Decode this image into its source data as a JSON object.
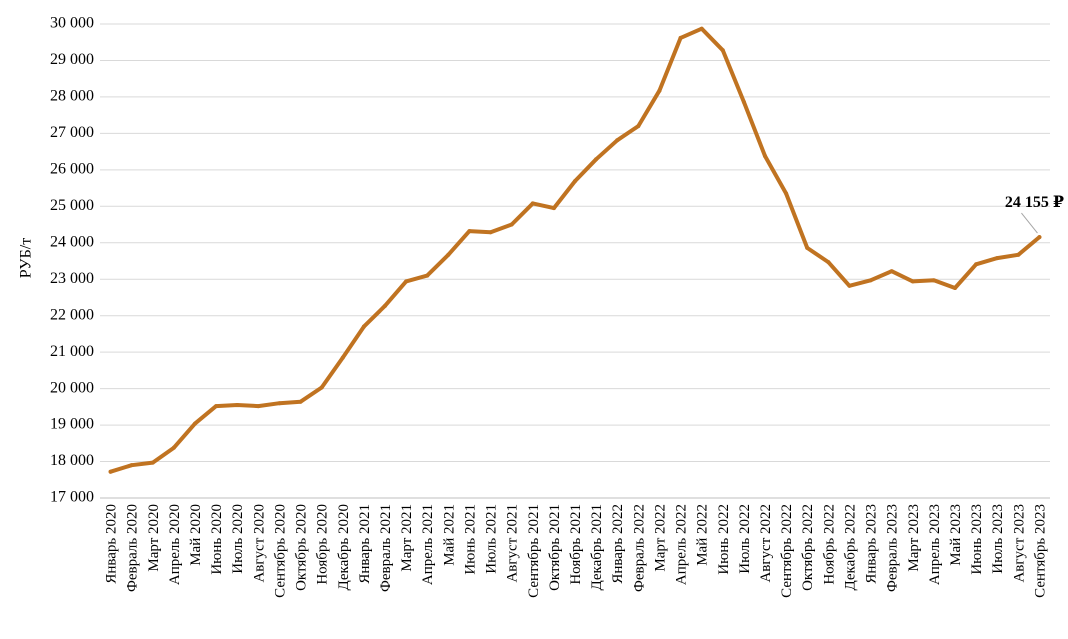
{
  "chart_data": {
    "type": "line",
    "title": "",
    "xlabel": "",
    "ylabel": "РУБ/т",
    "ylim": [
      17000,
      30000
    ],
    "ytick_step": 1000,
    "yticks": [
      "17 000",
      "18 000",
      "19 000",
      "20 000",
      "21 000",
      "22 000",
      "23 000",
      "24 000",
      "25 000",
      "26 000",
      "27 000",
      "28 000",
      "29 000",
      "30 000"
    ],
    "grid": true,
    "legend": "none",
    "line_color": "#c07321",
    "categories": [
      "Январь 2020",
      "Февраль 2020",
      "Март 2020",
      "Апрель 2020",
      "Май 2020",
      "Июнь 2020",
      "Июль 2020",
      "Август 2020",
      "Сентябрь 2020",
      "Октябрь 2020",
      "Ноябрь 2020",
      "Декабрь 2020",
      "Январь 2021",
      "Февраль 2021",
      "Март 2021",
      "Апрель 2021",
      "Май 2021",
      "Июнь 2021",
      "Июль 2021",
      "Август 2021",
      "Сентябрь 2021",
      "Октябрь 2021",
      "Ноябрь 2021",
      "Декабрь 2021",
      "Январь 2022",
      "Февраль 2022",
      "Март 2022",
      "Апрель 2022",
      "Май 2022",
      "Июнь 2022",
      "Июль 2022",
      "Август 2022",
      "Сентябрь 2022",
      "Октябрь 2022",
      "Ноябрь 2022",
      "Декабрь 2022",
      "Январь 2023",
      "Февраль 2023",
      "Март 2023",
      "Апрель 2023",
      "Май 2023",
      "Июнь 2023",
      "Июль 2023",
      "Август 2023",
      "Сентябрь 2023"
    ],
    "values": [
      17720,
      17900,
      17970,
      18380,
      19040,
      19520,
      19550,
      19520,
      19600,
      19640,
      20030,
      20850,
      21700,
      22270,
      22940,
      23100,
      23670,
      24320,
      24290,
      24500,
      25080,
      24950,
      25690,
      26290,
      26810,
      27200,
      28170,
      29620,
      29870,
      29280,
      27860,
      26380,
      25350,
      23860,
      23470,
      22820,
      22970,
      23220,
      22940,
      22970,
      22760,
      23410,
      23580,
      23670,
      24155
    ],
    "annotation": {
      "index": 44,
      "text": "24 155 ₽"
    }
  }
}
